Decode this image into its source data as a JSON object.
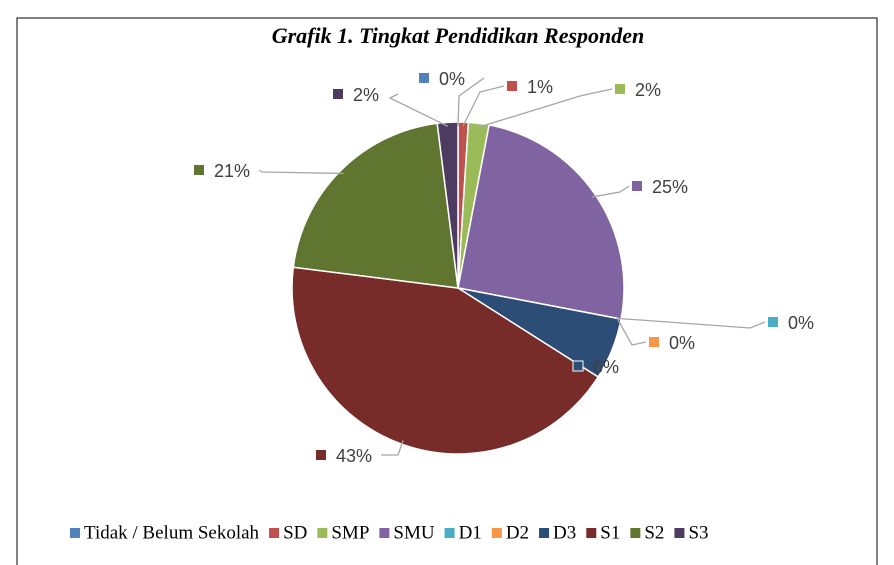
{
  "chart_data": {
    "type": "pie",
    "title": "Grafik 1. Tingkat Pendidikan Responden",
    "categories": [
      "Tidak / Belum Sekolah",
      "SD",
      "SMP",
      "SMU",
      "D1",
      "D2",
      "D3",
      "S1",
      "S2",
      "S3"
    ],
    "values": [
      0,
      1,
      2,
      25,
      0,
      0,
      6,
      43,
      21,
      2
    ],
    "value_labels": [
      "0%",
      "1%",
      "2%",
      "25%",
      "0%",
      "0%",
      "6%",
      "43%",
      "21%",
      "2%"
    ],
    "colors": [
      "#4f81bd",
      "#c0504d",
      "#9bbb59",
      "#8064a2",
      "#4bacc6",
      "#f79646",
      "#2c4d75",
      "#772c2a",
      "#5f7530",
      "#4d3b62"
    ],
    "legend": "bottom"
  }
}
